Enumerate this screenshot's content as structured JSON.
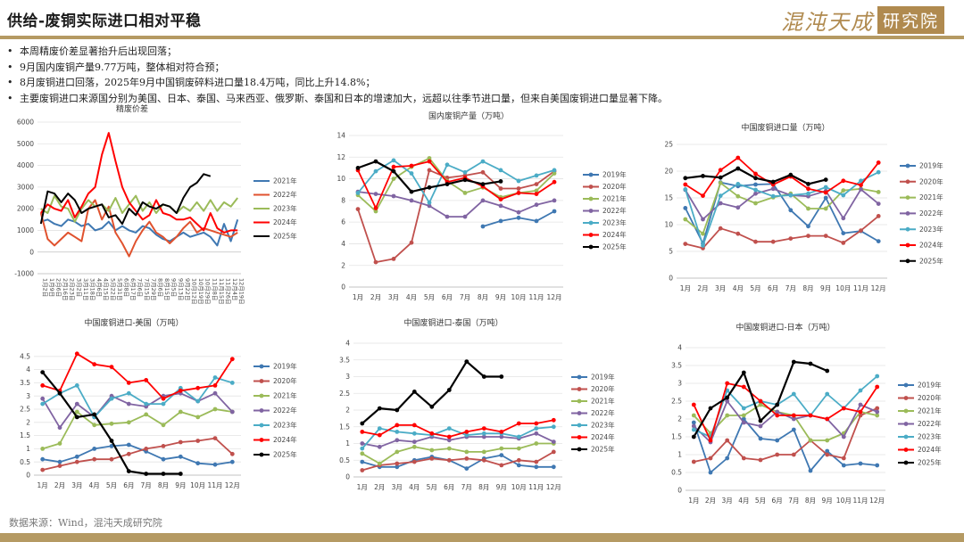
{
  "header": {
    "title": "供给-废铜实际进口相对平稳",
    "logo_text_a": "混沌天成",
    "logo_text_b": "研究院"
  },
  "bullets": [
    "本周精废价差显著抬升后出现回落；",
    "9月国内废铜产量9.77万吨，整体相对符合预；",
    "8月废铜进口回落，2025年9月中国铜废碎料进口量18.4万吨，同比上升14.8%；",
    "主要废铜进口来源国分别为美国、日本、泰国、马来西亚、俄罗斯、泰国和日本的增速加大，远超以往季节进口量，但来自美国废铜进口量显著下降。"
  ],
  "source": "数据来源：Wind，混沌天成研究院",
  "colors": {
    "2019年": "#3f78b2",
    "2020年": "#c0504d",
    "2021年": "#9bbb59",
    "2022年": "#8064a2",
    "2023年": "#4bacc6",
    "2024年": "#ff0000",
    "2025年": "#000000",
    "2021年_spread": "#3f78b2",
    "2022年_spread": "#e0522e",
    "2023年_spread": "#9bbb59",
    "2024年_spread": "#ff0000",
    "2025年_spread": "#000000"
  },
  "chart_data": [
    {
      "id": "spread",
      "type": "line",
      "title": "精废价差",
      "ylim": [
        -1000,
        6000
      ],
      "yticks": [
        "-1000",
        "0",
        "1000",
        "2000",
        "3000",
        "4000",
        "5000",
        "6000"
      ],
      "categories": [
        "1月2日",
        "1月9日",
        "2月6日",
        "2月16日",
        "2月23日",
        "3月2日",
        "3月11日",
        "3月18日",
        "4月6日",
        "4月15日",
        "5月22日",
        "5月31日",
        "6月8日",
        "6月17日",
        "7月6日",
        "7月15日",
        "7月29日",
        "8月6日",
        "8月15日",
        "9月5日",
        "9月13日",
        "9月22日",
        "10月12日",
        "10月19日",
        "10月29日",
        "11月8日",
        "11月15日",
        "11月26日",
        "12月4日",
        "12月19日"
      ],
      "legend_position": "right",
      "series": [
        {
          "name": "2021年",
          "values": [
            1400,
            1500,
            1300,
            1200,
            1500,
            1400,
            1200,
            1300,
            1000,
            1100,
            1400,
            1000,
            1200,
            1000,
            900,
            1200,
            1100,
            800,
            600,
            500,
            700,
            900,
            700,
            800,
            900,
            700,
            300,
            1300,
            500,
            1500
          ]
        },
        {
          "name": "2022年",
          "values": [
            1800,
            600,
            300,
            600,
            900,
            700,
            500,
            2000,
            2400,
            1500,
            2100,
            900,
            400,
            -200,
            500,
            1000,
            1400,
            900,
            700,
            400,
            700,
            1100,
            1400,
            900,
            1100,
            1000,
            900,
            800,
            700,
            900
          ]
        },
        {
          "name": "2023年",
          "values": [
            2000,
            1800,
            2600,
            2100,
            2000,
            1400,
            2000,
            2400,
            2100,
            2200,
            1900,
            2500,
            1800,
            2200,
            2600,
            1900,
            2300,
            1800,
            2200,
            2100,
            1800,
            2100,
            1900,
            2300,
            1900,
            2400,
            1900,
            2300,
            2100,
            2500
          ]
        },
        {
          "name": "2024年",
          "values": [
            1800,
            2200,
            2000,
            1900,
            2400,
            1600,
            2100,
            2700,
            3000,
            4500,
            5500,
            4200,
            3000,
            2300,
            1900,
            1500,
            1700,
            2400,
            1800,
            1700,
            1500,
            1500,
            1600,
            1300,
            1000,
            1800,
            1100,
            900,
            1000,
            1000
          ]
        },
        {
          "name": "2025年",
          "values": [
            1300,
            2800,
            2700,
            2300,
            2700,
            2400,
            1800,
            2000,
            2100,
            2200,
            1600,
            1700,
            1300,
            2000,
            1700,
            2300,
            2100,
            2000,
            2200,
            2100,
            1800,
            2500,
            3000,
            3200,
            3600,
            3500,
            null,
            null,
            null,
            null
          ]
        }
      ]
    },
    {
      "id": "domestic",
      "type": "line",
      "title": "国内废铜产量（万吨）",
      "ylim": [
        0,
        14
      ],
      "yticks": [
        "0",
        "2",
        "4",
        "6",
        "8",
        "10",
        "12",
        "14"
      ],
      "categories": [
        "1月",
        "2月",
        "3月",
        "4月",
        "5月",
        "6月",
        "7月",
        "8月",
        "9月",
        "10月",
        "11月",
        "12月"
      ],
      "legend_position": "right",
      "series": [
        {
          "name": "2019年",
          "values": [
            null,
            null,
            null,
            null,
            null,
            null,
            null,
            5.6,
            6.1,
            6.4,
            6.1,
            7.0
          ]
        },
        {
          "name": "2020年",
          "values": [
            7.2,
            2.3,
            2.6,
            4.1,
            10.8,
            10.1,
            10.3,
            10.6,
            9.1,
            9.1,
            9.5,
            10.7
          ]
        },
        {
          "name": "2021年",
          "values": [
            8.5,
            7.0,
            10.0,
            11.1,
            11.9,
            9.8,
            8.7,
            9.2,
            8.3,
            8.7,
            8.9,
            10.5
          ]
        },
        {
          "name": "2022年",
          "values": [
            8.8,
            8.6,
            8.4,
            8.0,
            7.5,
            6.5,
            6.5,
            8.0,
            7.5,
            6.9,
            7.6,
            8.0
          ]
        },
        {
          "name": "2023年",
          "values": [
            8.7,
            10.7,
            11.7,
            10.5,
            7.8,
            11.3,
            10.6,
            11.6,
            10.8,
            9.8,
            10.3,
            10.8
          ]
        },
        {
          "name": "2024年",
          "values": [
            10.8,
            7.3,
            11.1,
            11.2,
            11.6,
            9.7,
            10.1,
            9.3,
            8.1,
            8.7,
            8.6,
            9.7
          ]
        },
        {
          "name": "2025年",
          "values": [
            11.0,
            11.6,
            10.7,
            8.8,
            9.2,
            9.5,
            9.9,
            9.5,
            9.77,
            null,
            null,
            null
          ]
        }
      ]
    },
    {
      "id": "imports_total",
      "type": "line",
      "title": "中国废铜进口量（万吨）",
      "ylim": [
        0,
        25
      ],
      "yticks": [
        "0",
        "5",
        "10",
        "15",
        "20",
        "25"
      ],
      "categories": [
        "1月",
        "2月",
        "3月",
        "4月",
        "5月",
        "6月",
        "7月",
        "8月",
        "9月",
        "10月",
        "11月",
        "12月"
      ],
      "legend_position": "right",
      "series": [
        {
          "name": "2019年",
          "values": [
            13.1,
            6.5,
            17.9,
            17.2,
            17.5,
            17.6,
            12.7,
            9.7,
            15.0,
            8.4,
            8.8,
            6.9
          ]
        },
        {
          "name": "2020年",
          "values": [
            6.4,
            5.6,
            9.3,
            8.3,
            6.8,
            6.8,
            7.4,
            7.9,
            7.9,
            6.6,
            8.9,
            11.6
          ]
        },
        {
          "name": "2021年",
          "values": [
            11.0,
            8.3,
            17.8,
            15.3,
            14.0,
            15.1,
            15.8,
            13.0,
            13.0,
            16.4,
            16.7,
            16.1
          ]
        },
        {
          "name": "2022年",
          "values": [
            16.5,
            11.0,
            14.0,
            13.2,
            15.8,
            16.7,
            15.5,
            15.3,
            16.3,
            11.2,
            16.6,
            13.9
          ]
        },
        {
          "name": "2023年",
          "values": [
            16.6,
            6.1,
            15.4,
            17.6,
            16.5,
            15.3,
            15.5,
            15.8,
            17.0,
            15.5,
            18.2,
            19.8
          ]
        },
        {
          "name": "2024年",
          "values": [
            17.5,
            15.4,
            20.2,
            22.5,
            19.5,
            17.5,
            19.0,
            16.7,
            16.0,
            18.2,
            17.4,
            21.6
          ]
        },
        {
          "name": "2025年",
          "values": [
            18.7,
            19.1,
            18.8,
            20.5,
            18.7,
            18.0,
            19.3,
            17.6,
            18.4,
            null,
            null,
            null
          ]
        }
      ]
    },
    {
      "id": "imports_us",
      "type": "line",
      "title": "中国废铜进口-美国（万吨）",
      "ylim": [
        0,
        5
      ],
      "yticks": [
        "0",
        "0.5",
        "1",
        "1.5",
        "2",
        "2.5",
        "3",
        "3.5",
        "4",
        "4.5"
      ],
      "categories": [
        "1月",
        "2月",
        "3月",
        "4月",
        "5月",
        "6月",
        "7月",
        "8月",
        "9月",
        "10月",
        "11月",
        "12月"
      ],
      "legend_position": "right",
      "series": [
        {
          "name": "2019年",
          "values": [
            0.6,
            0.5,
            0.7,
            1.0,
            1.1,
            1.15,
            0.9,
            0.6,
            0.7,
            0.45,
            0.4,
            0.5
          ]
        },
        {
          "name": "2020年",
          "values": [
            0.2,
            0.35,
            0.5,
            0.6,
            0.6,
            0.8,
            1.0,
            1.1,
            1.25,
            1.3,
            1.4,
            0.8
          ]
        },
        {
          "name": "2021年",
          "values": [
            1.0,
            1.2,
            2.4,
            1.9,
            1.95,
            2.0,
            2.3,
            1.9,
            2.4,
            2.2,
            2.5,
            2.4
          ]
        },
        {
          "name": "2022年",
          "values": [
            2.9,
            1.8,
            2.7,
            2.2,
            3.0,
            2.7,
            2.6,
            3.0,
            3.1,
            2.8,
            3.1,
            2.4
          ]
        },
        {
          "name": "2023年",
          "values": [
            2.7,
            3.1,
            3.4,
            2.2,
            2.9,
            3.1,
            2.7,
            2.7,
            3.3,
            2.8,
            3.7,
            3.5
          ]
        },
        {
          "name": "2024年",
          "values": [
            3.4,
            3.2,
            4.6,
            4.2,
            4.1,
            3.5,
            3.6,
            2.9,
            3.2,
            3.3,
            3.4,
            4.4
          ]
        },
        {
          "name": "2025年",
          "values": [
            3.9,
            3.1,
            2.2,
            2.3,
            1.3,
            0.15,
            0.05,
            0.05,
            0.05,
            null,
            null,
            null
          ]
        }
      ]
    },
    {
      "id": "imports_th",
      "type": "line",
      "title": "中国废铜进口-泰国（万吨）",
      "ylim": [
        0,
        4
      ],
      "yticks": [
        "0",
        "0.5",
        "1",
        "1.5",
        "2",
        "2.5",
        "3",
        "3.5",
        "4"
      ],
      "categories": [
        "1月",
        "2月",
        "3月",
        "4月",
        "5月",
        "6月",
        "7月",
        "8月",
        "9月",
        "10月",
        "11月",
        "12月"
      ],
      "legend_position": "right",
      "series": [
        {
          "name": "2019年",
          "values": [
            0.45,
            0.3,
            0.3,
            0.5,
            0.6,
            0.5,
            0.25,
            0.55,
            0.65,
            0.35,
            0.3,
            0.3
          ]
        },
        {
          "name": "2020年",
          "values": [
            0.2,
            0.35,
            0.4,
            0.45,
            0.55,
            0.5,
            0.55,
            0.5,
            0.35,
            0.5,
            0.45,
            0.75
          ]
        },
        {
          "name": "2021年",
          "values": [
            0.7,
            0.4,
            0.75,
            0.9,
            0.8,
            0.85,
            0.75,
            0.75,
            0.85,
            0.85,
            1.0,
            1.0
          ]
        },
        {
          "name": "2022年",
          "values": [
            1.0,
            0.9,
            1.1,
            1.05,
            1.2,
            1.1,
            1.2,
            1.2,
            1.2,
            1.15,
            1.3,
            1.05
          ]
        },
        {
          "name": "2023年",
          "values": [
            0.85,
            1.45,
            1.35,
            1.3,
            1.25,
            1.45,
            1.25,
            1.3,
            1.3,
            1.2,
            1.45,
            1.5
          ]
        },
        {
          "name": "2024年",
          "values": [
            1.35,
            1.25,
            1.55,
            1.55,
            1.3,
            1.2,
            1.35,
            1.45,
            1.35,
            1.6,
            1.6,
            1.7
          ]
        },
        {
          "name": "2025年",
          "values": [
            1.6,
            2.05,
            2.0,
            2.55,
            2.1,
            2.6,
            3.45,
            3.0,
            3.0,
            null,
            null,
            null
          ]
        }
      ]
    },
    {
      "id": "imports_jp",
      "type": "line",
      "title": "中国废铜进口-日本（万吨）",
      "ylim": [
        0,
        4
      ],
      "yticks": [
        "0",
        "0.5",
        "1",
        "1.5",
        "2",
        "2.5",
        "3",
        "3.5",
        "4"
      ],
      "categories": [
        "1月",
        "2月",
        "3月",
        "4月",
        "5月",
        "6月",
        "7月",
        "8月",
        "9月",
        "10月",
        "11月",
        "12月"
      ],
      "legend_position": "right",
      "series": [
        {
          "name": "2019年",
          "values": [
            1.9,
            0.5,
            0.9,
            2.0,
            1.45,
            1.4,
            1.7,
            0.55,
            1.1,
            0.7,
            0.75,
            0.7
          ]
        },
        {
          "name": "2020年",
          "values": [
            0.8,
            0.9,
            1.4,
            0.9,
            0.85,
            1.0,
            1.0,
            1.4,
            1.0,
            0.9,
            2.1,
            2.3
          ]
        },
        {
          "name": "2021年",
          "values": [
            2.1,
            1.6,
            2.1,
            2.1,
            2.4,
            2.2,
            2.1,
            1.4,
            1.4,
            1.6,
            2.2,
            2.1
          ]
        },
        {
          "name": "2022年",
          "values": [
            1.8,
            1.35,
            2.5,
            1.9,
            1.8,
            2.2,
            2.0,
            2.1,
            2.0,
            1.5,
            2.4,
            2.2
          ]
        },
        {
          "name": "2023年",
          "values": [
            1.7,
            1.5,
            2.8,
            2.3,
            2.5,
            2.4,
            2.7,
            2.1,
            2.7,
            2.3,
            2.8,
            3.2
          ]
        },
        {
          "name": "2024年",
          "values": [
            2.4,
            1.4,
            3.0,
            2.9,
            2.5,
            2.1,
            2.1,
            2.1,
            2.0,
            2.3,
            2.2,
            2.9
          ]
        },
        {
          "name": "2025年",
          "values": [
            1.5,
            2.3,
            2.6,
            3.3,
            1.95,
            2.4,
            3.6,
            3.55,
            3.35,
            null,
            null,
            null
          ]
        }
      ]
    }
  ]
}
